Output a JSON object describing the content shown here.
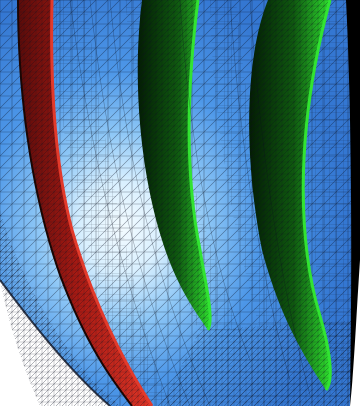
{
  "image": {
    "subject": "mesh-rendering",
    "colors": {
      "background": "#ffffff",
      "mesh_blue": "#3d86e0",
      "mesh_blue_dark": "#2e6fc4",
      "highlight": "#f3fbff",
      "red_blade": "#d42a1e",
      "red_blade_dark": "#5a0b09",
      "green_blade": "#1eb21e",
      "green_blade_dark": "#063a06",
      "mesh_line": "#0b1020",
      "black": "#000000"
    }
  }
}
